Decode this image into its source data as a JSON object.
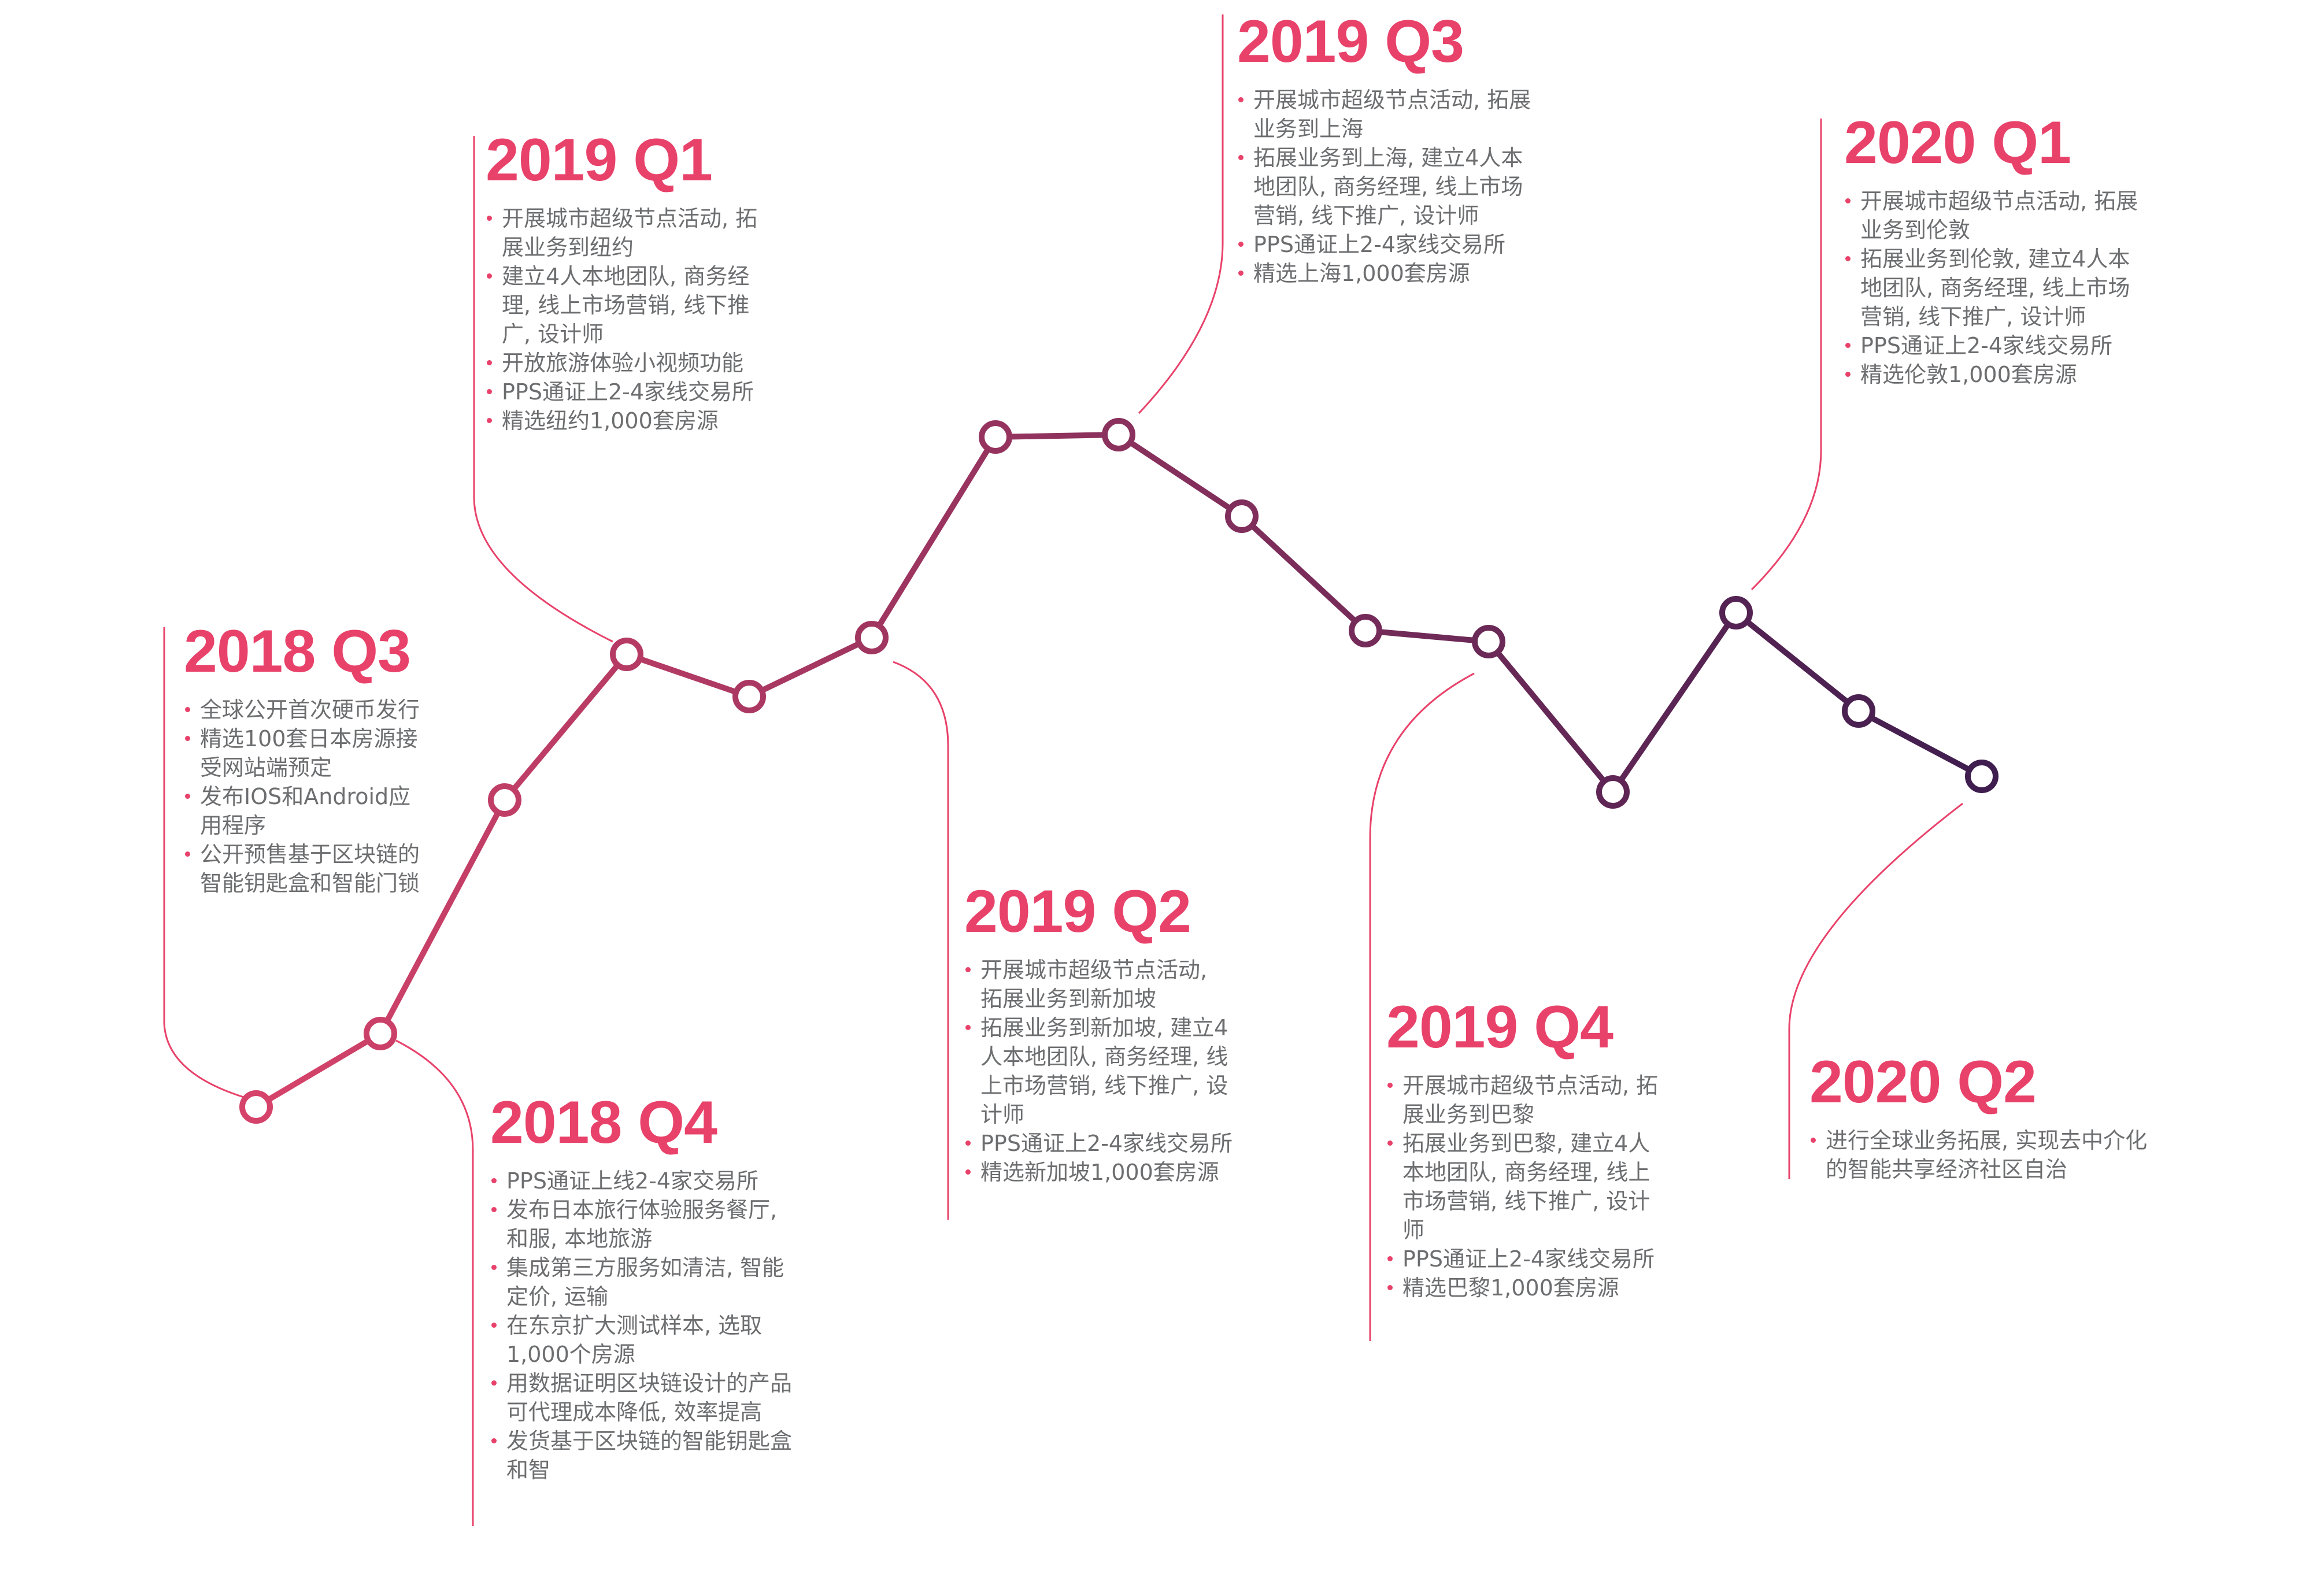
{
  "timeline": {
    "colors": {
      "accent": "#e8426a",
      "text": "#6d6e70",
      "line_start": "#d6436a",
      "line_end": "#3f1e4f"
    },
    "milestones": [
      {
        "period": "2018 Q3",
        "items": [
          "全球公开首次硬币发行",
          "精选100套日本房源接受网站端预定",
          "发布IOS和Android应用程序",
          "公开预售基于区块链的智能钥匙盒和智能门锁"
        ]
      },
      {
        "period": "2018 Q4",
        "items": [
          "PPS通证上线2-4家交易所",
          "发布日本旅行体验服务餐厅, 和服, 本地旅游",
          "集成第三方服务如清洁, 智能定价, 运输",
          "在东京扩大测试样本, 选取1,000个房源",
          "用数据证明区块链设计的产品可代理成本降低, 效率提高",
          "发货基于区块链的智能钥匙盒和智"
        ]
      },
      {
        "period": "2019 Q1",
        "items": [
          "开展城市超级节点活动, 拓展业务到纽约",
          "建立4人本地团队, 商务经理, 线上市场营销, 线下推广, 设计师",
          "开放旅游体验小视频功能",
          "PPS通证上2-4家线交易所",
          "精选纽约1,000套房源"
        ]
      },
      {
        "period": "2019 Q2",
        "items": [
          "开展城市超级节点活动, 拓展业务到新加坡",
          "拓展业务到新加坡, 建立4人本地团队, 商务经理, 线上市场营销, 线下推广, 设计师",
          "PPS通证上2-4家线交易所",
          "精选新加坡1,000套房源"
        ]
      },
      {
        "period": "2019 Q3",
        "items": [
          "开展城市超级节点活动, 拓展业务到上海",
          "拓展业务到上海, 建立4人本地团队, 商务经理, 线上市场营销, 线下推广, 设计师",
          "PPS通证上2-4家线交易所",
          "精选上海1,000套房源"
        ]
      },
      {
        "period": "2019 Q4",
        "items": [
          "开展城市超级节点活动, 拓展业务到巴黎",
          "拓展业务到巴黎, 建立4人本地团队, 商务经理, 线上市场营销, 线下推广, 设计师",
          "PPS通证上2-4家线交易所",
          "精选巴黎1,000套房源"
        ]
      },
      {
        "period": "2020 Q1",
        "items": [
          "开展城市超级节点活动, 拓展业务到伦敦",
          "拓展业务到伦敦, 建立4人本地团队, 商务经理, 线上市场营销, 线下推广, 设计师",
          "PPS通证上2-4家线交易所",
          "精选伦敦1,000套房源"
        ]
      },
      {
        "period": "2020 Q2",
        "items": [
          "进行全球业务拓展, 实现去中介化的智能共享经济社区自治"
        ]
      }
    ]
  }
}
